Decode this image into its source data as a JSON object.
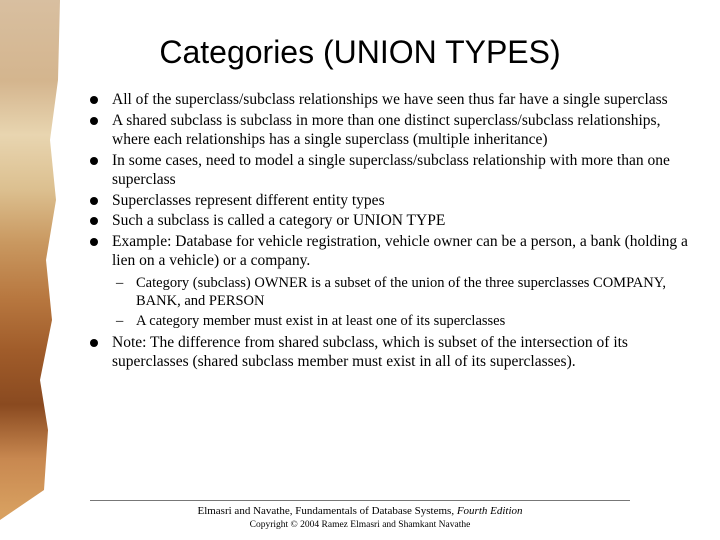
{
  "title": "Categories (UNION TYPES)",
  "bullets": {
    "b0": "All of the superclass/subclass relationships we have seen thus far have a single superclass",
    "b1": "A shared subclass is subclass in more than one distinct superclass/subclass relationships, where each relationships has a single superclass (multiple inheritance)",
    "b2": "In some cases, need to model a single superclass/subclass relationship with more than one superclass",
    "b3": "Superclasses represent different entity types",
    "b4": "Such a subclass is called a category or UNION TYPE",
    "b5": "Example: Database for vehicle registration, vehicle owner can be a person, a bank (holding a lien on a vehicle) or a company.",
    "s0": "Category (subclass) OWNER is a subset of the union of the three superclasses COMPANY, BANK, and PERSON",
    "s1": "A category member must exist in at least one of its superclasses",
    "b6": "Note: The difference from shared subclass, which is subset of the intersection of its superclasses (shared subclass member must exist in all of its superclasses)."
  },
  "footer": {
    "book_prefix": "Elmasri and Navathe, Fundamentals of Database Systems, ",
    "book_edition": "Fourth Edition",
    "copyright": "Copyright © 2004 Ramez Elmasri and Shamkant Navathe"
  },
  "colors": {
    "text": "#000000",
    "background": "#ffffff"
  }
}
